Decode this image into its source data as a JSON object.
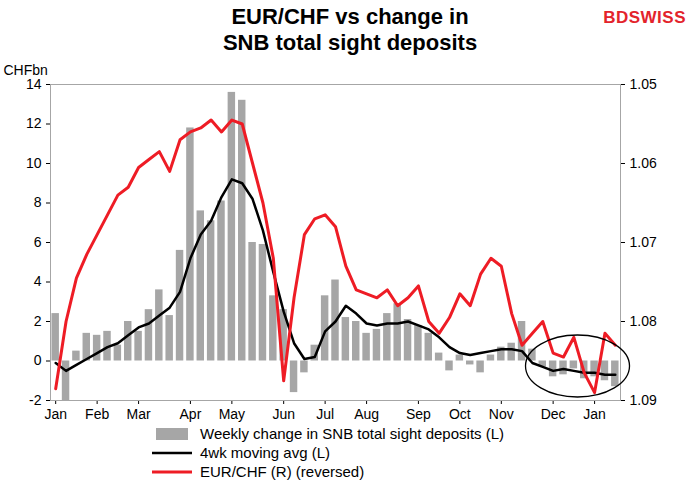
{
  "chart_data": {
    "type": "bar",
    "title": "EUR/CHF vs change in\nSNB total sight deposits",
    "logo": "BDSWISS",
    "ylabel": "CHFbn",
    "legend": "bottom",
    "categories": [
      "Jan",
      null,
      null,
      null,
      "Feb",
      null,
      null,
      null,
      "Mar",
      null,
      null,
      null,
      null,
      "Apr",
      null,
      null,
      null,
      "May",
      null,
      null,
      null,
      null,
      "Jun",
      null,
      null,
      null,
      "Jul",
      null,
      null,
      null,
      "Aug",
      null,
      null,
      null,
      null,
      "Sep",
      null,
      null,
      null,
      "Oct",
      null,
      null,
      null,
      "Nov",
      null,
      null,
      null,
      null,
      "Dec",
      null,
      null,
      null,
      "Jan",
      null,
      null
    ],
    "series": [
      {
        "name": "Weekly change in SNB total sight deposits (L)",
        "type": "bar",
        "color": "#a6a6a6",
        "values": [
          2.4,
          -2.0,
          0.5,
          1.4,
          1.3,
          1.5,
          0.8,
          2.0,
          1.5,
          2.6,
          3.6,
          2.3,
          5.6,
          11.8,
          7.6,
          7.1,
          8.1,
          13.6,
          13.2,
          6.0,
          5.9,
          3.3,
          2.6,
          -1.6,
          -0.6,
          0.8,
          3.3,
          4.1,
          2.2,
          2.0,
          1.4,
          1.6,
          2.4,
          2.9,
          2.1,
          1.8,
          1.4,
          0.4,
          -0.5,
          0.3,
          -0.2,
          -0.6,
          0.3,
          0.7,
          0.9,
          2.0,
          0.6,
          -0.3,
          -0.8,
          -0.7,
          -0.4,
          -0.9,
          -0.8,
          -1.0,
          -1.3
        ]
      },
      {
        "name": "4wk moving avg (L)",
        "type": "line",
        "color": "#000000",
        "values": [
          -0.1,
          -0.5,
          -0.2,
          0.1,
          0.4,
          0.7,
          0.9,
          1.3,
          1.7,
          1.9,
          2.3,
          2.7,
          3.5,
          5.2,
          6.4,
          7.1,
          8.3,
          9.2,
          9.0,
          8.2,
          6.6,
          4.5,
          2.5,
          0.9,
          0.1,
          0.2,
          1.5,
          2.0,
          2.8,
          2.4,
          1.9,
          1.8,
          1.9,
          1.9,
          2.0,
          1.8,
          1.6,
          1.2,
          0.7,
          0.4,
          0.3,
          0.4,
          0.5,
          0.6,
          0.6,
          0.5,
          -0.1,
          -0.3,
          -0.5,
          -0.4,
          -0.5,
          -0.6,
          -0.6,
          -0.7,
          -0.7
        ]
      },
      {
        "name": "EUR/CHF (R) (reversed)",
        "type": "line",
        "color": "#ee1c25",
        "axis": "y2",
        "values": [
          1.0885,
          1.08,
          1.0745,
          1.0715,
          1.069,
          1.0665,
          1.064,
          1.063,
          1.0605,
          1.0595,
          1.0585,
          1.061,
          1.057,
          1.056,
          1.0555,
          1.0545,
          1.056,
          1.0545,
          1.055,
          1.06,
          1.065,
          1.072,
          1.0875,
          1.077,
          1.069,
          1.067,
          1.0665,
          1.068,
          1.073,
          1.076,
          1.0765,
          1.077,
          1.076,
          1.078,
          1.077,
          1.0755,
          1.08,
          1.0815,
          1.0795,
          1.0765,
          1.078,
          1.074,
          1.072,
          1.073,
          1.079,
          1.083,
          1.0815,
          1.08,
          1.084,
          1.0845,
          1.082,
          1.0865,
          1.089,
          1.0815,
          1.083
        ]
      }
    ],
    "ylim": [
      -2,
      14
    ],
    "yticks": [
      -2,
      0,
      2,
      4,
      6,
      8,
      10,
      12,
      14
    ],
    "y2lim": [
      1.09,
      1.05
    ],
    "y2ticks": [
      1.05,
      1.06,
      1.07,
      1.08,
      1.09
    ]
  }
}
